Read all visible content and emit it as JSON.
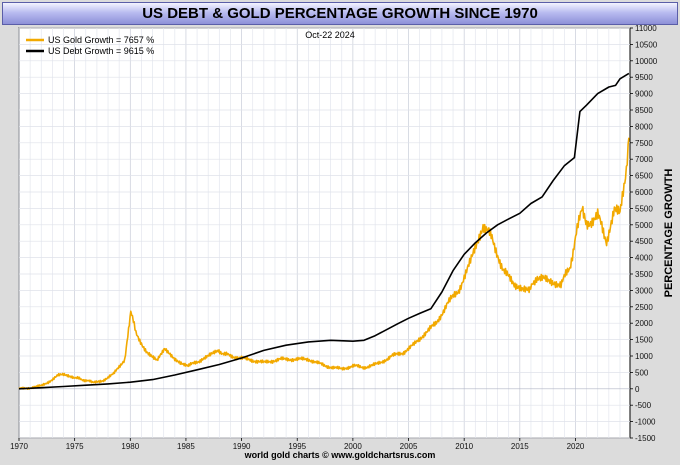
{
  "header": {
    "title": "US DEBT & GOLD PERCENTAGE GROWTH SINCE 1970"
  },
  "footer": {
    "credit": "world gold charts © www.goldchartsrus.com"
  },
  "chart_data": {
    "type": "line",
    "title": "US DEBT & GOLD PERCENTAGE GROWTH SINCE 1970",
    "date_label": "Oct-22  2024",
    "ylabel": "PERCENTAGE GROWTH",
    "xlabel": "",
    "xlim": [
      1970,
      2024.9
    ],
    "ylim": [
      -1500,
      11000
    ],
    "x_ticks": [
      1970,
      1975,
      1980,
      1985,
      1990,
      1995,
      2000,
      2005,
      2010,
      2015,
      2020
    ],
    "y_ticks": [
      -1500,
      -1000,
      -500,
      0,
      500,
      1000,
      1500,
      2000,
      2500,
      3000,
      3500,
      4000,
      4500,
      5000,
      5500,
      6000,
      6500,
      7000,
      7500,
      8000,
      8500,
      9000,
      9500,
      10000,
      10500,
      11000
    ],
    "grid": true,
    "legend_position": "top-left",
    "series": [
      {
        "name": "US Gold Growth = 7657 %",
        "color": "#f2a900",
        "x": [
          1970,
          1971,
          1972,
          1973,
          1973.5,
          1974,
          1974.9,
          1975.5,
          1976.6,
          1977.5,
          1978.5,
          1979.5,
          1980.05,
          1980.5,
          1981.5,
          1982.4,
          1983.1,
          1984,
          1985.2,
          1986.5,
          1987.9,
          1989,
          1990.5,
          1992,
          1993.5,
          1995,
          1996,
          1997.5,
          1999,
          2000,
          2001.3,
          2002.5,
          2003.5,
          2004.5,
          2005.5,
          2006.5,
          2007.5,
          2008.5,
          2009.5,
          2010.5,
          2011.7,
          2012.5,
          2013.5,
          2014.5,
          2015.9,
          2016.5,
          2017.5,
          2018.7,
          2019.5,
          2020.6,
          2021,
          2022,
          2022.8,
          2023.5,
          2024,
          2024.5,
          2024.8
        ],
        "y": [
          0,
          30,
          90,
          280,
          400,
          450,
          360,
          300,
          200,
          250,
          450,
          900,
          2400,
          1700,
          1100,
          850,
          1200,
          900,
          700,
          900,
          1150,
          1000,
          900,
          800,
          900,
          900,
          900,
          700,
          600,
          700,
          650,
          800,
          1000,
          1100,
          1350,
          1700,
          2000,
          2600,
          3000,
          3800,
          5000,
          4600,
          3600,
          3200,
          3000,
          3400,
          3300,
          3200,
          3700,
          5600,
          5000,
          5300,
          4500,
          5500,
          5300,
          6500,
          7657
        ]
      },
      {
        "name": "US Debt Growth = 9615 %",
        "color": "#000000",
        "x": [
          1970,
          1972,
          1974,
          1976,
          1978,
          1980,
          1982,
          1984,
          1986,
          1988,
          1990,
          1992,
          1994,
          1996,
          1998,
          2000,
          2001,
          2002,
          2003,
          2004,
          2005,
          2006,
          2007,
          2008,
          2009,
          2010,
          2011,
          2012,
          2013,
          2014,
          2015,
          2016,
          2017,
          2018,
          2019,
          2019.9,
          2020.4,
          2021,
          2022,
          2023,
          2023.6,
          2024,
          2024.8
        ],
        "y": [
          0,
          35,
          70,
          110,
          150,
          200,
          280,
          420,
          580,
          740,
          940,
          1170,
          1330,
          1430,
          1480,
          1450,
          1480,
          1620,
          1800,
          1980,
          2150,
          2300,
          2440,
          2950,
          3600,
          4100,
          4450,
          4750,
          5000,
          5180,
          5350,
          5650,
          5850,
          6350,
          6800,
          7050,
          8450,
          8650,
          9000,
          9200,
          9250,
          9450,
          9615
        ]
      }
    ]
  }
}
